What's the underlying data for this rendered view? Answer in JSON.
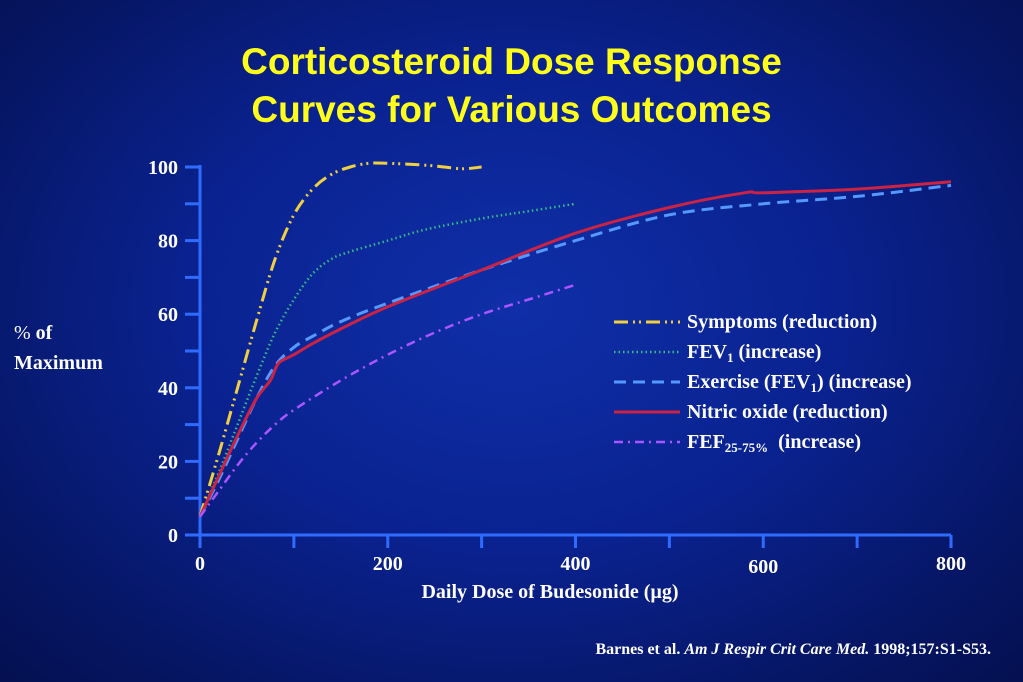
{
  "title_line1": "Corticosteroid Dose Response",
  "title_line2": "Curves for Various Outcomes",
  "ylabel_pct": "%",
  "ylabel_of": "of",
  "ylabel_line2": "Maximum",
  "xlabel": "Daily Dose of Budesonide (µg)",
  "citation": {
    "authors": "Barnes et al.",
    "journal": "Am J Respir Crit Care Med.",
    "ref": "1998;157:S1-S53."
  },
  "colors": {
    "symptoms": "#f0d040",
    "fev1": "#33bb88",
    "exercise": "#5599ff",
    "nitric": "#cc2244",
    "fef": "#aa55ff",
    "axis": "#2f6bff",
    "title": "#ffff1a"
  },
  "legend": [
    {
      "key": "symptoms",
      "name": "Symptoms (reduction)",
      "base": "",
      "sub": "",
      "suffix": ""
    },
    {
      "key": "fev1",
      "name": "",
      "base": "FEV",
      "sub": "1",
      "suffix": " (increase)"
    },
    {
      "key": "exercise",
      "name": "",
      "base": "Exercise (FEV",
      "sub": "1",
      "suffix": ") (increase)"
    },
    {
      "key": "nitric",
      "name": "Nitric oxide (reduction)",
      "base": "",
      "sub": "",
      "suffix": ""
    },
    {
      "key": "fef",
      "name": "",
      "base": "FEF",
      "sub": "25-75%",
      "suffix": "  (increase)"
    }
  ],
  "chart_data": {
    "type": "line",
    "title": "Corticosteroid Dose Response Curves for Various Outcomes",
    "xlabel": "Daily Dose of Budesonide (µg)",
    "ylabel": "% of Maximum",
    "xlim": [
      0,
      800
    ],
    "ylim": [
      0,
      100
    ],
    "x_ticks": [
      0,
      200,
      400,
      600,
      800
    ],
    "y_ticks": [
      0,
      20,
      40,
      60,
      80,
      100
    ],
    "grid": false,
    "legend_position": "right-center",
    "series": [
      {
        "key": "symptoms",
        "name": "Symptoms (reduction)",
        "style": "dash-dot-dot",
        "x": [
          0,
          20,
          40,
          60,
          80,
          100,
          120,
          140,
          160,
          180,
          200,
          240,
          260,
          280,
          300
        ],
        "y": [
          5,
          22,
          40,
          58,
          75,
          87,
          94,
          98,
          100,
          101,
          101,
          100.5,
          100,
          99.5,
          100
        ]
      },
      {
        "key": "fev1",
        "name": "FEV1 (increase)",
        "style": "dotted",
        "x": [
          0,
          20,
          40,
          60,
          80,
          100,
          120,
          140,
          160,
          200,
          240,
          300,
          350,
          400
        ],
        "y": [
          5,
          17,
          30,
          43,
          55,
          64,
          71,
          75,
          77,
          80,
          83,
          86,
          88,
          90
        ]
      },
      {
        "key": "exercise",
        "name": "Exercise (FEV1) (increase)",
        "style": "dashed",
        "x": [
          0,
          20,
          40,
          60,
          80,
          100,
          120,
          150,
          200,
          300,
          400,
          500,
          600,
          700,
          800
        ],
        "y": [
          5,
          15,
          26,
          37,
          46,
          51,
          54,
          58,
          63,
          72,
          80,
          87,
          90,
          92,
          95
        ]
      },
      {
        "key": "nitric",
        "name": "Nitric oxide (reduction)",
        "style": "solid",
        "x": [
          0,
          20,
          40,
          60,
          75,
          80,
          85,
          100,
          120,
          150,
          200,
          300,
          400,
          500,
          580,
          600,
          700,
          800
        ],
        "y": [
          5,
          16,
          27,
          37,
          42,
          45,
          47,
          49,
          52,
          56,
          62,
          72,
          82,
          89,
          93,
          93,
          94,
          96
        ]
      },
      {
        "key": "fef",
        "name": "FEF25-75% (increase)",
        "style": "dash-dot",
        "x": [
          0,
          20,
          40,
          60,
          80,
          100,
          150,
          200,
          250,
          300,
          350,
          400
        ],
        "y": [
          5,
          12,
          19,
          25,
          30,
          34,
          42,
          49,
          55,
          60,
          64,
          68
        ]
      }
    ]
  }
}
